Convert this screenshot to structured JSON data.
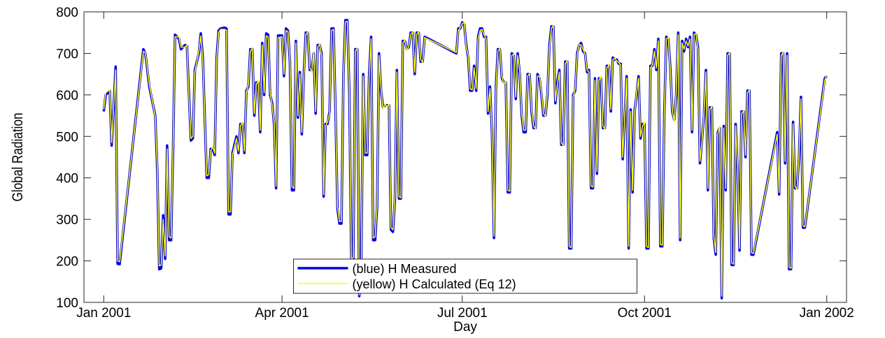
{
  "chart_data": {
    "type": "line",
    "x_label": "Day",
    "y_label": "Global Radiation",
    "xlim": [
      -10,
      375
    ],
    "ylim": [
      100,
      800
    ],
    "xticks": [
      {
        "value": 0,
        "label": "Jan 2001"
      },
      {
        "value": 90,
        "label": "Apr 2001"
      },
      {
        "value": 181,
        "label": "Jul 2001"
      },
      {
        "value": 273,
        "label": "Oct 2001"
      },
      {
        "value": 365,
        "label": "Jan 2002"
      }
    ],
    "yticks": [
      100,
      200,
      300,
      400,
      500,
      600,
      700,
      800
    ],
    "legend": "lower center",
    "x": [
      0,
      1,
      3,
      4,
      6,
      7,
      8,
      20,
      21,
      23,
      26,
      27,
      28,
      29,
      30,
      31,
      32,
      33,
      34,
      35,
      36,
      38,
      39,
      41,
      42,
      43,
      44,
      45,
      46,
      48,
      49,
      50,
      52,
      53,
      54,
      55,
      56,
      57,
      58,
      59,
      61,
      62,
      63,
      64,
      65,
      67,
      68,
      69,
      70,
      71,
      72,
      73,
      74,
      75,
      76,
      77,
      78,
      79,
      80,
      81,
      82,
      83,
      84,
      85,
      86,
      87,
      88,
      90,
      91,
      92,
      93,
      94,
      95,
      96,
      97,
      98,
      99,
      100,
      101,
      102,
      103,
      104,
      105,
      106,
      107,
      108,
      109,
      110,
      111,
      112,
      113,
      114,
      115,
      116,
      117,
      118,
      119,
      120,
      121,
      122,
      123,
      124,
      125,
      126,
      127,
      128,
      129,
      130,
      131,
      132,
      133,
      134,
      135,
      136,
      137,
      138,
      139,
      140,
      141,
      142,
      143,
      144,
      145,
      146,
      147,
      148,
      149,
      150,
      151,
      152,
      153,
      154,
      155,
      156,
      157,
      158,
      159,
      160,
      161,
      162,
      178,
      179,
      180,
      181,
      182,
      183,
      184,
      185,
      186,
      187,
      188,
      189,
      190,
      191,
      192,
      193,
      194,
      195,
      196,
      197,
      198,
      199,
      200,
      201,
      202,
      203,
      204,
      205,
      206,
      207,
      208,
      209,
      210,
      211,
      212,
      213,
      214,
      215,
      216,
      217,
      218,
      219,
      220,
      221,
      222,
      223,
      224,
      225,
      226,
      227,
      228,
      229,
      230,
      231,
      232,
      233,
      234,
      235,
      236,
      237,
      238,
      239,
      240,
      241,
      242,
      243,
      244,
      245,
      246,
      247,
      248,
      249,
      250,
      251,
      252,
      253,
      254,
      255,
      256,
      257,
      258,
      259,
      260,
      261,
      262,
      263,
      264,
      265,
      266,
      267,
      268,
      269,
      270,
      271,
      272,
      273,
      274,
      275,
      276,
      277,
      278,
      279,
      280,
      281,
      282,
      283,
      284,
      285,
      286,
      287,
      288,
      289,
      290,
      291,
      292,
      293,
      294,
      295,
      296,
      297,
      298,
      299,
      300,
      301,
      302,
      303,
      304,
      305,
      306,
      307,
      308,
      309,
      310,
      311,
      312,
      313,
      314,
      315,
      316,
      317,
      318,
      319,
      320,
      321,
      322,
      323,
      324,
      325,
      326,
      327,
      328,
      340,
      341,
      342,
      343,
      344,
      345,
      346,
      347,
      348,
      349,
      350,
      351,
      352,
      353,
      354,
      364,
      365
    ],
    "series": [
      {
        "name": "(blue) H Measured",
        "color": "#0000e6",
        "width": 3.5,
        "values": [
          560,
          600,
          610,
          478,
          668,
          193,
          192,
          710,
          700,
          620,
          550,
          420,
          180,
          182,
          310,
          205,
          478,
          250,
          250,
          470,
          745,
          735,
          710,
          720,
          718,
          600,
          490,
          495,
          660,
          700,
          748,
          690,
          400,
          400,
          470,
          470,
          455,
          690,
          755,
          760,
          762,
          760,
          312,
          312,
          460,
          500,
          460,
          530,
          530,
          460,
          610,
          620,
          710,
          710,
          550,
          630,
          630,
          510,
          725,
          600,
          748,
          745,
          600,
          580,
          530,
          375,
          743,
          743,
          645,
          760,
          755,
          680,
          370,
          370,
          730,
          545,
          655,
          505,
          650,
          750,
          750,
          660,
          660,
          700,
          555,
          720,
          720,
          700,
          355,
          530,
          530,
          560,
          760,
          760,
          560,
          325,
          290,
          290,
          650,
          780,
          780,
          600,
          200,
          200,
          710,
          710,
          115,
          200,
          650,
          455,
          455,
          650,
          740,
          250,
          250,
          330,
          700,
          610,
          570,
          575,
          575,
          575,
          275,
          270,
          350,
          660,
          350,
          350,
          730,
          730,
          710,
          715,
          750,
          750,
          650,
          750,
          750,
          680,
          680,
          740,
          700,
          760,
          760,
          775,
          770,
          720,
          690,
          610,
          610,
          670,
          610,
          740,
          760,
          760,
          740,
          740,
          555,
          620,
          510,
          255,
          620,
          710,
          710,
          640,
          630,
          630,
          365,
          365,
          700,
          695,
          590,
          700,
          650,
          550,
          510,
          510,
          650,
          650,
          560,
          520,
          520,
          650,
          640,
          600,
          550,
          550,
          600,
          720,
          765,
          765,
          580,
          630,
          660,
          480,
          480,
          680,
          680,
          230,
          230,
          600,
          610,
          700,
          720,
          725,
          705,
          700,
          655,
          660,
          375,
          375,
          640,
          410,
          640,
          640,
          520,
          520,
          670,
          670,
          560,
          690,
          685,
          685,
          675,
          675,
          445,
          540,
          645,
          230,
          565,
          365,
          560,
          600,
          645,
          495,
          530,
          530,
          230,
          230,
          670,
          670,
          710,
          660,
          735,
          235,
          235,
          550,
          740,
          735,
          670,
          560,
          540,
          600,
          750,
          250,
          730,
          705,
          735,
          715,
          740,
          510,
          750,
          745,
          715,
          435,
          490,
          550,
          660,
          370,
          570,
          570,
          255,
          215,
          510,
          520,
          110,
          525,
          370,
          700,
          700,
          190,
          190,
          530,
          420,
          225,
          560,
          560,
          450,
          610,
          610,
          215,
          215,
          510,
          360,
          700,
          700,
          435,
          700,
          180,
          180,
          535,
          375,
          375,
          450,
          595,
          280,
          280,
          640,
          645
        ]
      },
      {
        "name": "(yellow) H Calculated (Eq 12)",
        "color": "#ffff00",
        "width": 1.5,
        "values": [
          565,
          605,
          612,
          485,
          660,
          200,
          198,
          705,
          702,
          625,
          548,
          430,
          188,
          190,
          300,
          212,
          470,
          258,
          255,
          475,
          740,
          740,
          715,
          715,
          720,
          595,
          495,
          500,
          655,
          705,
          742,
          685,
          405,
          408,
          465,
          475,
          460,
          685,
          750,
          758,
          758,
          755,
          318,
          318,
          455,
          495,
          465,
          525,
          535,
          465,
          605,
          625,
          705,
          712,
          555,
          625,
          635,
          515,
          720,
          605,
          742,
          740,
          605,
          575,
          535,
          380,
          738,
          740,
          650,
          755,
          752,
          685,
          378,
          375,
          725,
          550,
          650,
          510,
          645,
          745,
          752,
          665,
          655,
          705,
          560,
          715,
          722,
          695,
          360,
          525,
          535,
          555,
          755,
          758,
          565,
          330,
          295,
          295,
          645,
          775,
          778,
          605,
          205,
          208,
          705,
          712,
          118,
          205,
          645,
          460,
          460,
          645,
          735,
          255,
          258,
          335,
          695,
          615,
          565,
          578,
          572,
          578,
          280,
          275,
          355,
          655,
          355,
          352,
          725,
          732,
          705,
          718,
          745,
          752,
          655,
          745,
          752,
          685,
          678,
          738,
          702,
          755,
          762,
          772,
          775,
          715,
          695,
          615,
          612,
          665,
          615,
          735,
          755,
          758,
          745,
          735,
          560,
          615,
          515,
          260,
          615,
          705,
          712,
          645,
          625,
          635,
          370,
          368,
          695,
          698,
          595,
          695,
          655,
          555,
          515,
          515,
          645,
          652,
          565,
          525,
          518,
          645,
          645,
          605,
          555,
          548,
          605,
          715,
          760,
          768,
          585,
          625,
          655,
          485,
          478,
          675,
          682,
          235,
          232,
          595,
          615,
          695,
          722,
          720,
          710,
          698,
          660,
          655,
          380,
          378,
          635,
          415,
          635,
          645,
          525,
          518,
          665,
          672,
          565,
          685,
          688,
          682,
          678,
          672,
          450,
          545,
          640,
          235,
          560,
          370,
          555,
          605,
          640,
          500,
          525,
          535,
          235,
          232,
          665,
          672,
          705,
          665,
          730,
          240,
          238,
          545,
          735,
          738,
          665,
          565,
          535,
          605,
          745,
          255,
          725,
          710,
          730,
          718,
          735,
          515,
          745,
          748,
          710,
          440,
          485,
          555,
          655,
          375,
          565,
          572,
          260,
          220,
          505,
          525,
          115,
          520,
          375,
          695,
          702,
          195,
          192,
          525,
          425,
          230,
          555,
          562,
          455,
          605,
          612,
          220,
          218,
          505,
          365,
          695,
          702,
          440,
          695,
          185,
          182,
          530,
          380,
          372,
          455,
          590,
          285,
          282,
          635,
          648
        ]
      }
    ]
  }
}
